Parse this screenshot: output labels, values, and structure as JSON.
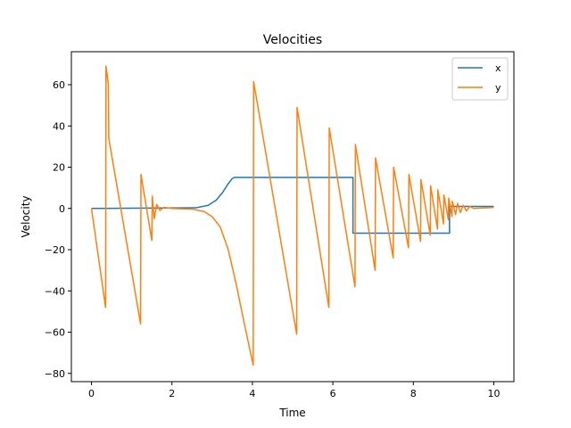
{
  "chart_data": {
    "type": "line",
    "title": "Velocities",
    "xlabel": "Time",
    "ylabel": "Velocity",
    "xlim": [
      -0.5,
      10.5
    ],
    "ylim": [
      -84,
      76
    ],
    "xticks": [
      0,
      2,
      4,
      6,
      8,
      10
    ],
    "yticks": [
      -80,
      -60,
      -40,
      -20,
      0,
      20,
      40,
      60
    ],
    "grid": false,
    "legend": "top-right",
    "series": [
      {
        "name": "x",
        "color": "#1f77b4",
        "points": [
          [
            0,
            0
          ],
          [
            2.6,
            0.3
          ],
          [
            2.9,
            1.5
          ],
          [
            3.1,
            4
          ],
          [
            3.25,
            7.5
          ],
          [
            3.4,
            12
          ],
          [
            3.5,
            14.5
          ],
          [
            3.55,
            15
          ],
          [
            6.5,
            15
          ],
          [
            6.5,
            -12
          ],
          [
            8.9,
            -12
          ],
          [
            8.9,
            1
          ],
          [
            10,
            1
          ]
        ]
      },
      {
        "name": "y",
        "color": "#ff7f0e",
        "points": [
          [
            0,
            0
          ],
          [
            0.35,
            -48
          ],
          [
            0.36,
            69
          ],
          [
            0.42,
            60
          ],
          [
            0.43,
            34
          ],
          [
            1.22,
            -56
          ],
          [
            1.23,
            16.5
          ],
          [
            1.5,
            -15.5
          ],
          [
            1.51,
            6
          ],
          [
            1.56,
            -5
          ],
          [
            1.62,
            2
          ],
          [
            1.7,
            -1
          ],
          [
            1.8,
            0.5
          ],
          [
            2.0,
            0
          ],
          [
            2.5,
            -0.3
          ],
          [
            2.8,
            -1.5
          ],
          [
            3.0,
            -4
          ],
          [
            3.2,
            -9
          ],
          [
            3.4,
            -20
          ],
          [
            3.6,
            -37
          ],
          [
            3.8,
            -56
          ],
          [
            4.02,
            -76
          ],
          [
            4.03,
            61.5
          ],
          [
            5.1,
            -61
          ],
          [
            5.11,
            49
          ],
          [
            5.9,
            -48
          ],
          [
            5.91,
            39
          ],
          [
            6.55,
            -38
          ],
          [
            6.56,
            31
          ],
          [
            7.05,
            -30
          ],
          [
            7.06,
            24.5
          ],
          [
            7.5,
            -24
          ],
          [
            7.51,
            20
          ],
          [
            7.88,
            -19
          ],
          [
            7.89,
            16.5
          ],
          [
            8.18,
            -16
          ],
          [
            8.19,
            14
          ],
          [
            8.42,
            -13
          ],
          [
            8.43,
            11
          ],
          [
            8.6,
            -10
          ],
          [
            8.61,
            9
          ],
          [
            8.75,
            -7.5
          ],
          [
            8.76,
            6.5
          ],
          [
            8.87,
            -5.5
          ],
          [
            8.88,
            5
          ],
          [
            8.96,
            -4
          ],
          [
            8.97,
            3.5
          ],
          [
            9.05,
            -3
          ],
          [
            9.1,
            2.5
          ],
          [
            9.17,
            -2
          ],
          [
            9.24,
            1.5
          ],
          [
            9.32,
            -1.2
          ],
          [
            9.4,
            1
          ],
          [
            9.5,
            0
          ],
          [
            10,
            0.5
          ]
        ]
      }
    ]
  }
}
